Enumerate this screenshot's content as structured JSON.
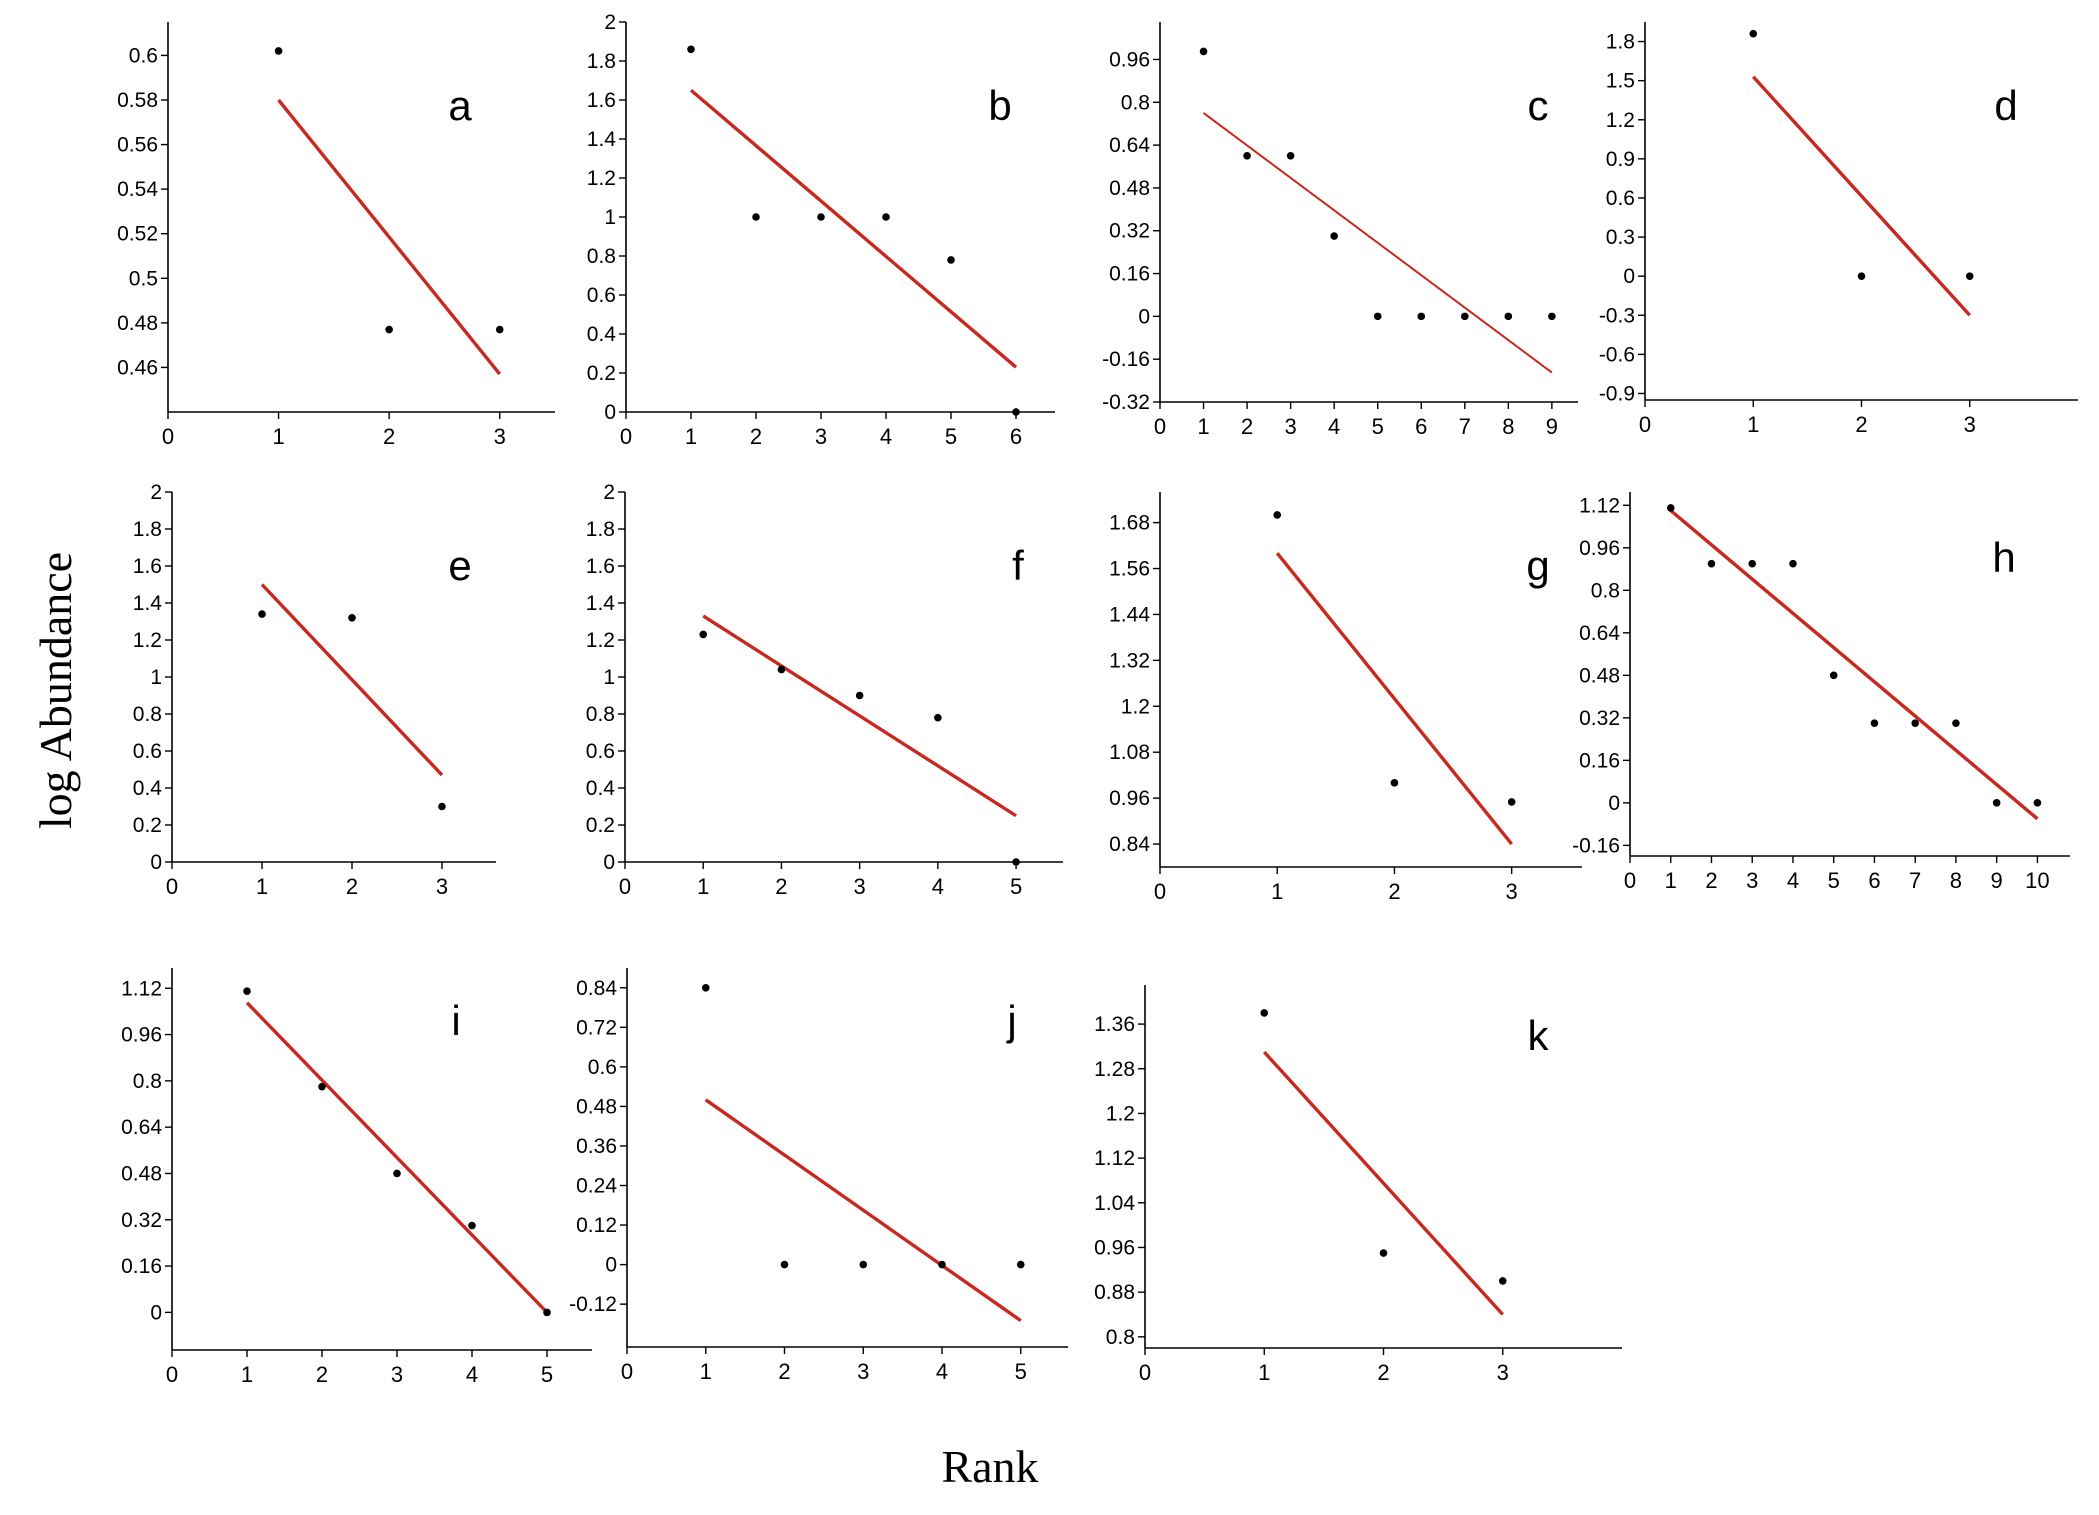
{
  "figure": {
    "ylabel": "log Abundance",
    "xlabel": "Rank",
    "trend_color": "#c8281e",
    "point_color": "#000000",
    "axis_color": "#000000"
  },
  "chart_data": [
    {
      "type": "scatter",
      "panel": "a",
      "xlim": [
        0,
        3.5
      ],
      "ylim": [
        0.44,
        0.615
      ],
      "xticks": [
        0,
        1,
        2,
        3
      ],
      "yticks": [
        0.46,
        0.48,
        0.5,
        0.52,
        0.54,
        0.56,
        0.58,
        0.6
      ],
      "ytick_labels": [
        "0.46",
        "0.48",
        "0.5",
        "0.52",
        "0.54",
        "0.56",
        "0.58",
        "0.6"
      ],
      "points": {
        "x": [
          1,
          2,
          3
        ],
        "y": [
          0.602,
          0.477,
          0.477
        ]
      },
      "trendline": {
        "x": [
          1,
          3
        ],
        "y": [
          0.58,
          0.457
        ]
      }
    },
    {
      "type": "scatter",
      "panel": "b",
      "xlim": [
        0,
        6.6
      ],
      "ylim": [
        0,
        2
      ],
      "xticks": [
        0,
        1,
        2,
        3,
        4,
        5,
        6
      ],
      "yticks": [
        0,
        0.2,
        0.4,
        0.6,
        0.8,
        1,
        1.2,
        1.4,
        1.6,
        1.8,
        2
      ],
      "ytick_labels": [
        "0",
        "0.2",
        "0.4",
        "0.6",
        "0.8",
        "1",
        "1.2",
        "1.4",
        "1.6",
        "1.8",
        "2"
      ],
      "points": {
        "x": [
          1,
          2,
          3,
          4,
          5,
          6
        ],
        "y": [
          1.86,
          1,
          1,
          1,
          0.78,
          0
        ]
      },
      "trendline": {
        "x": [
          1,
          6
        ],
        "y": [
          1.65,
          0.23
        ]
      }
    },
    {
      "type": "scatter",
      "panel": "c",
      "xlim": [
        0,
        9.6
      ],
      "ylim": [
        -0.32,
        1.1
      ],
      "xticks": [
        0,
        1,
        2,
        3,
        4,
        5,
        6,
        7,
        8,
        9
      ],
      "yticks": [
        -0.32,
        -0.16,
        0,
        0.16,
        0.32,
        0.48,
        0.64,
        0.8,
        0.96
      ],
      "ytick_labels": [
        "-0.32",
        "-0.16",
        "0",
        "0.16",
        "0.32",
        "0.48",
        "0.64",
        "0.8",
        "0.96"
      ],
      "points": {
        "x": [
          1,
          2,
          3,
          4,
          5,
          6,
          7,
          8,
          9
        ],
        "y": [
          0.99,
          0.6,
          0.6,
          0.3,
          0,
          0,
          0,
          0,
          0
        ]
      },
      "trendline": {
        "x": [
          1,
          9
        ],
        "y": [
          0.76,
          -0.21
        ]
      }
    },
    {
      "type": "scatter",
      "panel": "d",
      "xlim": [
        0,
        4
      ],
      "ylim": [
        -0.95,
        1.95
      ],
      "xticks": [
        0,
        1,
        2,
        3
      ],
      "yticks": [
        -0.9,
        -0.6,
        -0.3,
        0,
        0.3,
        0.6,
        0.9,
        1.2,
        1.5,
        1.8
      ],
      "ytick_labels": [
        "-0.9",
        "-0.6",
        "-0.3",
        "0",
        "0.3",
        "0.6",
        "0.9",
        "1.2",
        "1.5",
        "1.8"
      ],
      "points": {
        "x": [
          1,
          2,
          3
        ],
        "y": [
          1.86,
          0,
          0
        ]
      },
      "trendline": {
        "x": [
          1,
          3
        ],
        "y": [
          1.53,
          -0.3
        ]
      }
    },
    {
      "type": "scatter",
      "panel": "e",
      "xlim": [
        0,
        3.6
      ],
      "ylim": [
        0,
        2
      ],
      "xticks": [
        0,
        1,
        2,
        3
      ],
      "yticks": [
        0,
        0.2,
        0.4,
        0.6,
        0.8,
        1,
        1.2,
        1.4,
        1.6,
        1.8,
        2
      ],
      "ytick_labels": [
        "0",
        "0.2",
        "0.4",
        "0.6",
        "0.8",
        "1",
        "1.2",
        "1.4",
        "1.6",
        "1.8",
        "2"
      ],
      "points": {
        "x": [
          1,
          2,
          3
        ],
        "y": [
          1.34,
          1.32,
          0.3
        ]
      },
      "trendline": {
        "x": [
          1,
          3
        ],
        "y": [
          1.5,
          0.47
        ]
      }
    },
    {
      "type": "scatter",
      "panel": "f",
      "xlim": [
        0,
        5.6
      ],
      "ylim": [
        0,
        2
      ],
      "xticks": [
        0,
        1,
        2,
        3,
        4,
        5
      ],
      "yticks": [
        0,
        0.2,
        0.4,
        0.6,
        0.8,
        1,
        1.2,
        1.4,
        1.6,
        1.8,
        2
      ],
      "ytick_labels": [
        "0",
        "0.2",
        "0.4",
        "0.6",
        "0.8",
        "1",
        "1.2",
        "1.4",
        "1.6",
        "1.8",
        "2"
      ],
      "points": {
        "x": [
          1,
          2,
          3,
          4,
          5
        ],
        "y": [
          1.23,
          1.04,
          0.9,
          0.78,
          0
        ]
      },
      "trendline": {
        "x": [
          1,
          5
        ],
        "y": [
          1.33,
          0.25
        ]
      }
    },
    {
      "type": "scatter",
      "panel": "g",
      "xlim": [
        0,
        3.6
      ],
      "ylim": [
        0.78,
        1.76
      ],
      "xticks": [
        0,
        1,
        2,
        3
      ],
      "yticks": [
        0.84,
        0.96,
        1.08,
        1.2,
        1.32,
        1.44,
        1.56,
        1.68
      ],
      "ytick_labels": [
        "0.84",
        "0.96",
        "1.08",
        "1.2",
        "1.32",
        "1.44",
        "1.56",
        "1.68"
      ],
      "points": {
        "x": [
          1,
          2,
          3
        ],
        "y": [
          1.7,
          1,
          0.95
        ]
      },
      "trendline": {
        "x": [
          1,
          3
        ],
        "y": [
          1.6,
          0.84
        ]
      }
    },
    {
      "type": "scatter",
      "panel": "h",
      "xlim": [
        0,
        10.8
      ],
      "ylim": [
        -0.2,
        1.17
      ],
      "xticks": [
        0,
        1,
        2,
        3,
        4,
        5,
        6,
        7,
        8,
        9,
        10
      ],
      "yticks": [
        -0.16,
        0,
        0.16,
        0.32,
        0.48,
        0.64,
        0.8,
        0.96,
        1.12
      ],
      "ytick_labels": [
        "-0.16",
        "0",
        "0.16",
        "0.32",
        "0.48",
        "0.64",
        "0.8",
        "0.96",
        "1.12"
      ],
      "points": {
        "x": [
          1,
          2,
          3,
          4,
          5,
          6,
          7,
          8,
          9,
          10
        ],
        "y": [
          1.11,
          0.9,
          0.9,
          0.9,
          0.48,
          0.3,
          0.3,
          0.3,
          0,
          0
        ]
      },
      "trendline": {
        "x": [
          1,
          10
        ],
        "y": [
          1.1,
          -0.06
        ]
      }
    },
    {
      "type": "scatter",
      "panel": "i",
      "xlim": [
        0,
        5.6
      ],
      "ylim": [
        -0.13,
        1.19
      ],
      "xticks": [
        0,
        1,
        2,
        3,
        4,
        5
      ],
      "yticks": [
        0,
        0.16,
        0.32,
        0.48,
        0.64,
        0.8,
        0.96,
        1.12
      ],
      "ytick_labels": [
        "0",
        "0.16",
        "0.32",
        "0.48",
        "0.64",
        "0.8",
        "0.96",
        "1.12"
      ],
      "points": {
        "x": [
          1,
          2,
          3,
          4,
          5
        ],
        "y": [
          1.11,
          0.78,
          0.48,
          0.3,
          0
        ]
      },
      "trendline": {
        "x": [
          1,
          5
        ],
        "y": [
          1.07,
          0
        ]
      }
    },
    {
      "type": "scatter",
      "panel": "j",
      "xlim": [
        0,
        5.6
      ],
      "ylim": [
        -0.25,
        0.9
      ],
      "xticks": [
        0,
        1,
        2,
        3,
        4,
        5
      ],
      "yticks": [
        -0.12,
        0,
        0.12,
        0.24,
        0.36,
        0.48,
        0.6,
        0.72,
        0.84
      ],
      "ytick_labels": [
        "-0.12",
        "0",
        "0.12",
        "0.24",
        "0.36",
        "0.48",
        "0.6",
        "0.72",
        "0.84"
      ],
      "points": {
        "x": [
          1,
          2,
          3,
          4,
          5
        ],
        "y": [
          0.84,
          0,
          0,
          0,
          0
        ]
      },
      "trendline": {
        "x": [
          1,
          5
        ],
        "y": [
          0.5,
          -0.17
        ]
      }
    },
    {
      "type": "scatter",
      "panel": "k",
      "xlim": [
        0,
        4
      ],
      "ylim": [
        0.78,
        1.43
      ],
      "xticks": [
        0,
        1,
        2,
        3
      ],
      "yticks": [
        0.8,
        0.88,
        0.96,
        1.04,
        1.12,
        1.2,
        1.28,
        1.36
      ],
      "ytick_labels": [
        "0.8",
        "0.88",
        "0.96",
        "1.04",
        "1.12",
        "1.2",
        "1.28",
        "1.36"
      ],
      "points": {
        "x": [
          1,
          2,
          3
        ],
        "y": [
          1.38,
          0.95,
          0.9
        ]
      },
      "trendline": {
        "x": [
          1,
          3
        ],
        "y": [
          1.31,
          0.84
        ]
      }
    }
  ]
}
